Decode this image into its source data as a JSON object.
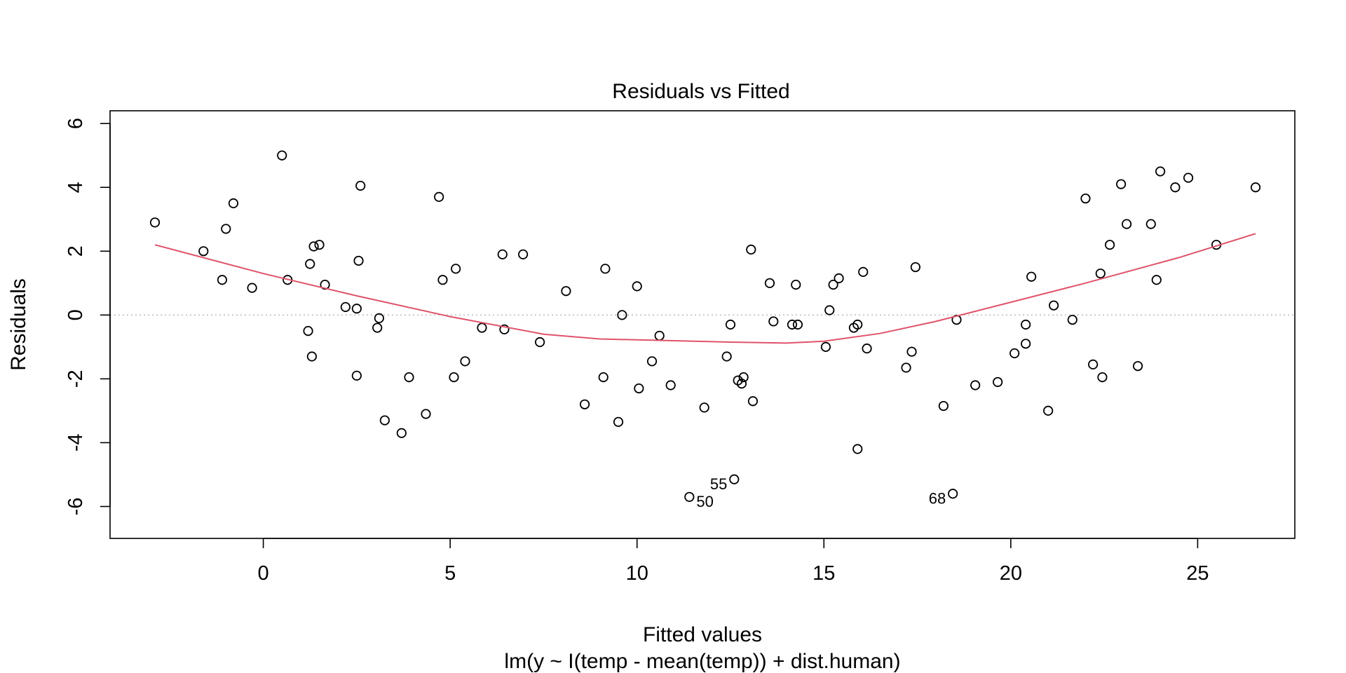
{
  "chart_data": {
    "type": "scatter",
    "title": "Residuals vs Fitted",
    "xlabel": "Fitted values",
    "subtitle": "lm(y ~ I(temp - mean(temp)) + dist.human)",
    "ylabel": "Residuals",
    "xlim": [
      -4.1,
      27.6
    ],
    "ylim": [
      -7,
      6.4
    ],
    "xticks": [
      0,
      5,
      10,
      15,
      20,
      25
    ],
    "xtick_labels": [
      "0",
      "5",
      "10",
      "15",
      "20",
      "25"
    ],
    "yticks": [
      -6,
      -4,
      -2,
      0,
      2,
      4,
      6
    ],
    "ytick_labels": [
      "-6",
      "-4",
      "-2",
      "0",
      "2",
      "4",
      "6"
    ],
    "reference_line": {
      "y": 0,
      "style": "dotted",
      "color": "#bebebe"
    },
    "points": [
      [
        -2.9,
        2.9
      ],
      [
        -1.6,
        2.0
      ],
      [
        -1.1,
        1.1
      ],
      [
        -1.0,
        2.7
      ],
      [
        -0.8,
        3.5
      ],
      [
        -0.3,
        0.85
      ],
      [
        0.5,
        5.0
      ],
      [
        0.65,
        1.1
      ],
      [
        1.2,
        -0.5
      ],
      [
        1.25,
        1.6
      ],
      [
        1.3,
        -1.3
      ],
      [
        1.35,
        2.15
      ],
      [
        1.5,
        2.2
      ],
      [
        1.65,
        0.95
      ],
      [
        2.2,
        0.25
      ],
      [
        2.5,
        -1.9
      ],
      [
        2.5,
        0.2
      ],
      [
        2.55,
        1.7
      ],
      [
        2.6,
        4.05
      ],
      [
        3.05,
        -0.4
      ],
      [
        3.1,
        -0.1
      ],
      [
        3.25,
        -3.3
      ],
      [
        3.7,
        -3.7
      ],
      [
        3.9,
        -1.95
      ],
      [
        4.35,
        -3.1
      ],
      [
        4.7,
        3.7
      ],
      [
        4.8,
        1.1
      ],
      [
        5.1,
        -1.95
      ],
      [
        5.15,
        1.45
      ],
      [
        5.4,
        -1.45
      ],
      [
        5.85,
        -0.4
      ],
      [
        6.4,
        1.9
      ],
      [
        6.45,
        -0.45
      ],
      [
        6.95,
        1.9
      ],
      [
        7.4,
        -0.85
      ],
      [
        8.1,
        0.75
      ],
      [
        8.6,
        -2.8
      ],
      [
        9.1,
        -1.95
      ],
      [
        9.15,
        1.45
      ],
      [
        9.5,
        -3.35
      ],
      [
        9.6,
        0.0
      ],
      [
        10.0,
        0.9
      ],
      [
        10.05,
        -2.3
      ],
      [
        10.4,
        -1.45
      ],
      [
        10.6,
        -0.65
      ],
      [
        10.9,
        -2.2
      ],
      [
        11.4,
        -5.7
      ],
      [
        11.8,
        -2.9
      ],
      [
        12.4,
        -1.3
      ],
      [
        12.5,
        -0.3
      ],
      [
        12.6,
        -5.15
      ],
      [
        12.7,
        -2.05
      ],
      [
        12.8,
        -2.15
      ],
      [
        12.85,
        -1.95
      ],
      [
        13.05,
        2.05
      ],
      [
        13.1,
        -2.7
      ],
      [
        13.55,
        1.0
      ],
      [
        13.65,
        -0.2
      ],
      [
        14.15,
        -0.3
      ],
      [
        14.25,
        0.95
      ],
      [
        14.3,
        -0.3
      ],
      [
        15.05,
        -1.0
      ],
      [
        15.15,
        0.15
      ],
      [
        15.25,
        0.95
      ],
      [
        15.4,
        1.15
      ],
      [
        15.8,
        -0.4
      ],
      [
        15.9,
        -0.3
      ],
      [
        15.9,
        -4.2
      ],
      [
        16.05,
        1.35
      ],
      [
        16.15,
        -1.05
      ],
      [
        17.2,
        -1.65
      ],
      [
        17.35,
        -1.15
      ],
      [
        17.45,
        1.5
      ],
      [
        18.2,
        -2.85
      ],
      [
        18.45,
        -5.6
      ],
      [
        18.55,
        -0.15
      ],
      [
        19.05,
        -2.2
      ],
      [
        19.65,
        -2.1
      ],
      [
        20.1,
        -1.2
      ],
      [
        20.4,
        -0.3
      ],
      [
        20.4,
        -0.9
      ],
      [
        20.55,
        1.2
      ],
      [
        21.0,
        -3.0
      ],
      [
        21.15,
        0.3
      ],
      [
        21.65,
        -0.15
      ],
      [
        22.0,
        3.65
      ],
      [
        22.2,
        -1.55
      ],
      [
        22.4,
        1.3
      ],
      [
        22.45,
        -1.95
      ],
      [
        22.65,
        2.2
      ],
      [
        22.95,
        4.1
      ],
      [
        23.1,
        2.85
      ],
      [
        23.4,
        -1.6
      ],
      [
        23.75,
        2.85
      ],
      [
        23.9,
        1.1
      ],
      [
        24.0,
        4.5
      ],
      [
        24.4,
        4.0
      ],
      [
        24.75,
        4.3
      ],
      [
        25.5,
        2.2
      ],
      [
        26.55,
        4.0
      ]
    ],
    "smooth_line": {
      "color": "#DF536B",
      "points": [
        [
          -2.9,
          2.2
        ],
        [
          0,
          1.3
        ],
        [
          2.5,
          0.6
        ],
        [
          5,
          -0.05
        ],
        [
          7.5,
          -0.6
        ],
        [
          9,
          -0.75
        ],
        [
          12.5,
          -0.85
        ],
        [
          14,
          -0.88
        ],
        [
          15,
          -0.82
        ],
        [
          16.5,
          -0.58
        ],
        [
          18,
          -0.2
        ],
        [
          20,
          0.4
        ],
        [
          22,
          1.0
        ],
        [
          24.5,
          1.8
        ],
        [
          26.55,
          2.55
        ]
      ]
    },
    "point_labels": [
      {
        "text": "50",
        "x": 11.4,
        "y": -5.7,
        "side": "right"
      },
      {
        "text": "55",
        "x": 12.6,
        "y": -5.15,
        "side": "left"
      },
      {
        "text": "68",
        "x": 18.45,
        "y": -5.6,
        "side": "left"
      }
    ]
  }
}
